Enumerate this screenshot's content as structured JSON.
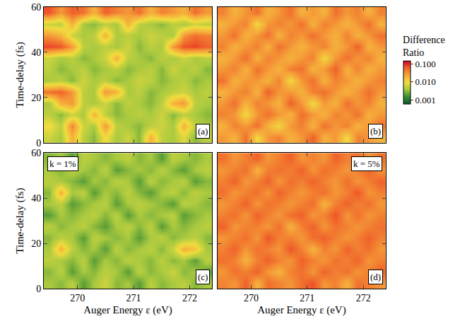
{
  "chart_data": {
    "type": "heatmap",
    "xlabel": "Auger Energy ε (eV)",
    "ylabel": "Time-delay (fs)",
    "xlim": [
      269.4,
      272.4
    ],
    "ylim": [
      0,
      60
    ],
    "xticks": [
      270,
      271,
      272
    ],
    "yticks": [
      0,
      20,
      40,
      60
    ],
    "x": [
      269.5,
      269.7,
      269.9,
      270.1,
      270.3,
      270.5,
      270.7,
      270.9,
      271.1,
      271.3,
      271.5,
      271.7,
      271.9,
      272.1,
      272.3
    ],
    "y": [
      2.5,
      7.5,
      12.5,
      17.5,
      22.5,
      27.5,
      32.5,
      37.5,
      42.5,
      47.5,
      52.5,
      57.5
    ],
    "colorbar": {
      "title": "Difference Ratio",
      "range": [
        0.0006,
        0.15
      ],
      "ticks": [
        0.001,
        {
          "value": 0.01,
          "label": "0.010"
        },
        {
          "value": 0.1,
          "label": "0.100"
        }
      ],
      "log": true
    },
    "panels": [
      {
        "label": "(a)",
        "z": [
          [
            0.006,
            0.004,
            0.02,
            0.005,
            0.003,
            0.01,
            0.004,
            0.006,
            0.003,
            0.02,
            0.005,
            0.004,
            0.008,
            0.003,
            0.005
          ],
          [
            0.01,
            0.005,
            0.04,
            0.006,
            0.004,
            0.03,
            0.005,
            0.004,
            0.003,
            0.005,
            0.006,
            0.004,
            0.02,
            0.005,
            0.004
          ],
          [
            0.005,
            0.003,
            0.006,
            0.004,
            0.02,
            0.005,
            0.003,
            0.004,
            0.005,
            0.004,
            0.006,
            0.003,
            0.005,
            0.004,
            0.003
          ],
          [
            0.004,
            0.02,
            0.03,
            0.005,
            0.004,
            0.006,
            0.003,
            0.005,
            0.004,
            0.003,
            0.005,
            0.02,
            0.03,
            0.005,
            0.004
          ],
          [
            0.05,
            0.06,
            0.03,
            0.005,
            0.004,
            0.03,
            0.02,
            0.004,
            0.005,
            0.003,
            0.004,
            0.005,
            0.006,
            0.004,
            0.005
          ],
          [
            0.004,
            0.005,
            0.003,
            0.006,
            0.004,
            0.005,
            0.003,
            0.004,
            0.006,
            0.005,
            0.003,
            0.004,
            0.005,
            0.003,
            0.004
          ],
          [
            0.005,
            0.003,
            0.004,
            0.005,
            0.003,
            0.004,
            0.005,
            0.003,
            0.004,
            0.005,
            0.003,
            0.006,
            0.004,
            0.005,
            0.003
          ],
          [
            0.006,
            0.004,
            0.005,
            0.003,
            0.004,
            0.006,
            0.02,
            0.005,
            0.004,
            0.003,
            0.005,
            0.004,
            0.006,
            0.004,
            0.005
          ],
          [
            0.08,
            0.07,
            0.03,
            0.005,
            0.004,
            0.005,
            0.004,
            0.006,
            0.003,
            0.005,
            0.004,
            0.03,
            0.07,
            0.08,
            0.06
          ],
          [
            0.03,
            0.02,
            0.006,
            0.004,
            0.005,
            0.02,
            0.004,
            0.005,
            0.004,
            0.006,
            0.005,
            0.004,
            0.03,
            0.05,
            0.04
          ],
          [
            0.006,
            0.005,
            0.02,
            0.004,
            0.003,
            0.005,
            0.004,
            0.02,
            0.005,
            0.004,
            0.003,
            0.005,
            0.004,
            0.006,
            0.005
          ],
          [
            0.07,
            0.03,
            0.06,
            0.05,
            0.02,
            0.06,
            0.04,
            0.03,
            0.05,
            0.02,
            0.04,
            0.03,
            0.02,
            0.05,
            0.03
          ]
        ]
      },
      {
        "label": "(b)",
        "z": [
          [
            0.03,
            0.02,
            0.05,
            0.01,
            0.03,
            0.04,
            0.02,
            0.03,
            0.06,
            0.02,
            0.03,
            0.01,
            0.04,
            0.03,
            0.02
          ],
          [
            0.02,
            0.04,
            0.03,
            0.05,
            0.02,
            0.01,
            0.03,
            0.04,
            0.02,
            0.05,
            0.03,
            0.04,
            0.02,
            0.03,
            0.05
          ],
          [
            0.04,
            0.03,
            0.01,
            0.03,
            0.05,
            0.03,
            0.02,
            0.05,
            0.03,
            0.02,
            0.04,
            0.03,
            0.05,
            0.02,
            0.03
          ],
          [
            0.03,
            0.05,
            0.02,
            0.04,
            0.03,
            0.02,
            0.06,
            0.03,
            0.01,
            0.03,
            0.02,
            0.05,
            0.03,
            0.04,
            0.02
          ],
          [
            0.02,
            0.03,
            0.04,
            0.02,
            0.06,
            0.03,
            0.03,
            0.02,
            0.04,
            0.05,
            0.03,
            0.02,
            0.03,
            0.05,
            0.03
          ],
          [
            0.05,
            0.02,
            0.03,
            0.03,
            0.02,
            0.04,
            0.01,
            0.03,
            0.05,
            0.02,
            0.04,
            0.03,
            0.02,
            0.03,
            0.04
          ],
          [
            0.03,
            0.04,
            0.02,
            0.05,
            0.03,
            0.02,
            0.04,
            0.05,
            0.02,
            0.03,
            0.06,
            0.02,
            0.04,
            0.02,
            0.03
          ],
          [
            0.02,
            0.03,
            0.05,
            0.02,
            0.04,
            0.03,
            0.02,
            0.03,
            0.04,
            0.01,
            0.03,
            0.05,
            0.03,
            0.04,
            0.02
          ],
          [
            0.04,
            0.02,
            0.03,
            0.04,
            0.02,
            0.05,
            0.03,
            0.02,
            0.03,
            0.04,
            0.02,
            0.03,
            0.06,
            0.02,
            0.03
          ],
          [
            0.03,
            0.05,
            0.02,
            0.03,
            0.05,
            0.02,
            0.04,
            0.03,
            0.05,
            0.03,
            0.02,
            0.04,
            0.02,
            0.03,
            0.05
          ],
          [
            0.02,
            0.03,
            0.04,
            0.01,
            0.03,
            0.04,
            0.03,
            0.05,
            0.02,
            0.04,
            0.03,
            0.02,
            0.03,
            0.05,
            0.02
          ],
          [
            0.04,
            0.02,
            0.03,
            0.05,
            0.02,
            0.03,
            0.05,
            0.02,
            0.03,
            0.02,
            0.05,
            0.03,
            0.04,
            0.02,
            0.04
          ]
        ]
      },
      {
        "label": "(c)",
        "note": "k = 1%",
        "z": [
          [
            0.004,
            0.003,
            0.005,
            0.002,
            0.004,
            0.006,
            0.003,
            0.004,
            0.002,
            0.005,
            0.003,
            0.004,
            0.005,
            0.003,
            0.004
          ],
          [
            0.003,
            0.005,
            0.002,
            0.004,
            0.003,
            0.005,
            0.004,
            0.002,
            0.005,
            0.003,
            0.004,
            0.006,
            0.003,
            0.004,
            0.002
          ],
          [
            0.005,
            0.004,
            0.003,
            0.005,
            0.002,
            0.004,
            0.003,
            0.005,
            0.004,
            0.003,
            0.005,
            0.003,
            0.004,
            0.002,
            0.005
          ],
          [
            0.004,
            0.02,
            0.005,
            0.003,
            0.004,
            0.002,
            0.005,
            0.003,
            0.004,
            0.005,
            0.003,
            0.006,
            0.02,
            0.015,
            0.004
          ],
          [
            0.003,
            0.005,
            0.004,
            0.002,
            0.005,
            0.004,
            0.003,
            0.004,
            0.002,
            0.004,
            0.005,
            0.003,
            0.004,
            0.005,
            0.003
          ],
          [
            0.005,
            0.003,
            0.004,
            0.005,
            0.003,
            0.002,
            0.004,
            0.005,
            0.003,
            0.005,
            0.002,
            0.004,
            0.003,
            0.004,
            0.005
          ],
          [
            0.002,
            0.004,
            0.003,
            0.004,
            0.005,
            0.003,
            0.005,
            0.002,
            0.004,
            0.003,
            0.004,
            0.005,
            0.002,
            0.003,
            0.004
          ],
          [
            0.004,
            0.005,
            0.002,
            0.003,
            0.004,
            0.005,
            0.002,
            0.004,
            0.005,
            0.004,
            0.003,
            0.002,
            0.005,
            0.004,
            0.003
          ],
          [
            0.003,
            0.02,
            0.004,
            0.005,
            0.002,
            0.004,
            0.003,
            0.005,
            0.003,
            0.002,
            0.004,
            0.005,
            0.003,
            0.005,
            0.004
          ],
          [
            0.005,
            0.004,
            0.003,
            0.002,
            0.004,
            0.003,
            0.005,
            0.004,
            0.002,
            0.005,
            0.003,
            0.004,
            0.005,
            0.002,
            0.003
          ],
          [
            0.004,
            0.003,
            0.005,
            0.004,
            0.003,
            0.005,
            0.002,
            0.003,
            0.004,
            0.003,
            0.005,
            0.003,
            0.002,
            0.004,
            0.005
          ],
          [
            0.003,
            0.004,
            0.002,
            0.005,
            0.004,
            0.003,
            0.004,
            0.005,
            0.003,
            0.004,
            0.002,
            0.005,
            0.004,
            0.003,
            0.004
          ]
        ]
      },
      {
        "label": "(d)",
        "note": "k = 5%",
        "z": [
          [
            0.04,
            0.03,
            0.06,
            0.02,
            0.05,
            0.04,
            0.03,
            0.05,
            0.07,
            0.03,
            0.04,
            0.02,
            0.05,
            0.04,
            0.03
          ],
          [
            0.03,
            0.05,
            0.04,
            0.06,
            0.03,
            0.02,
            0.04,
            0.05,
            0.03,
            0.06,
            0.04,
            0.05,
            0.03,
            0.04,
            0.06
          ],
          [
            0.05,
            0.04,
            0.02,
            0.04,
            0.06,
            0.04,
            0.03,
            0.06,
            0.04,
            0.03,
            0.05,
            0.04,
            0.06,
            0.03,
            0.04
          ],
          [
            0.04,
            0.06,
            0.03,
            0.05,
            0.04,
            0.03,
            0.07,
            0.04,
            0.02,
            0.04,
            0.03,
            0.06,
            0.04,
            0.05,
            0.03
          ],
          [
            0.03,
            0.04,
            0.05,
            0.03,
            0.07,
            0.04,
            0.04,
            0.03,
            0.05,
            0.06,
            0.04,
            0.03,
            0.04,
            0.06,
            0.04
          ],
          [
            0.06,
            0.03,
            0.04,
            0.04,
            0.03,
            0.05,
            0.02,
            0.04,
            0.06,
            0.03,
            0.05,
            0.04,
            0.03,
            0.04,
            0.05
          ],
          [
            0.04,
            0.05,
            0.03,
            0.06,
            0.04,
            0.03,
            0.05,
            0.06,
            0.03,
            0.04,
            0.07,
            0.03,
            0.05,
            0.03,
            0.04
          ],
          [
            0.03,
            0.04,
            0.06,
            0.03,
            0.05,
            0.04,
            0.03,
            0.04,
            0.05,
            0.02,
            0.04,
            0.06,
            0.04,
            0.05,
            0.03
          ],
          [
            0.05,
            0.03,
            0.04,
            0.05,
            0.03,
            0.06,
            0.04,
            0.03,
            0.04,
            0.05,
            0.03,
            0.04,
            0.07,
            0.03,
            0.04
          ],
          [
            0.04,
            0.06,
            0.03,
            0.04,
            0.06,
            0.03,
            0.05,
            0.04,
            0.06,
            0.04,
            0.03,
            0.05,
            0.03,
            0.04,
            0.06
          ],
          [
            0.03,
            0.04,
            0.05,
            0.02,
            0.04,
            0.05,
            0.04,
            0.06,
            0.03,
            0.05,
            0.04,
            0.03,
            0.04,
            0.06,
            0.03
          ],
          [
            0.05,
            0.03,
            0.04,
            0.06,
            0.03,
            0.04,
            0.06,
            0.03,
            0.04,
            0.03,
            0.06,
            0.04,
            0.05,
            0.03,
            0.05
          ]
        ]
      }
    ]
  }
}
